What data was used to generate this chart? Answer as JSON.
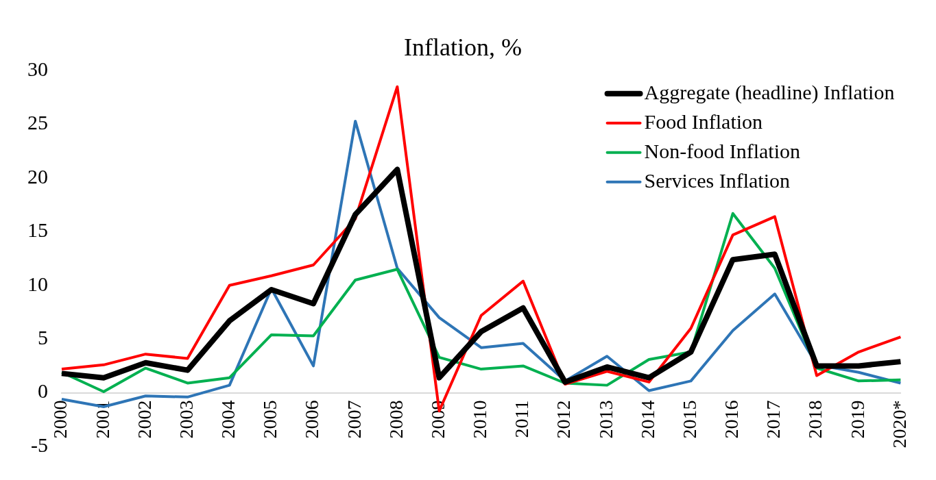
{
  "chart_data": {
    "type": "line",
    "title": "Inflation, %",
    "categories": [
      "2000",
      "2001",
      "2002",
      "2003",
      "2004",
      "2005",
      "2006",
      "2007",
      "2008",
      "2009",
      "2010",
      "2011",
      "2012",
      "2013",
      "2014",
      "2015",
      "2016",
      "2017",
      "2018",
      "2019",
      "2020*"
    ],
    "series": [
      {
        "name": "Aggregate (headline) Inflation",
        "color": "#000000",
        "values": [
          1.8,
          1.4,
          2.8,
          2.1,
          6.7,
          9.6,
          8.3,
          16.6,
          20.8,
          1.4,
          5.7,
          7.9,
          1.0,
          2.4,
          1.4,
          3.8,
          12.4,
          12.9,
          2.5,
          2.5,
          2.9
        ]
      },
      {
        "name": "Food Inflation",
        "color": "#ff0000",
        "values": [
          2.2,
          2.6,
          3.6,
          3.2,
          10.0,
          10.9,
          11.9,
          16.2,
          28.5,
          -1.7,
          7.2,
          10.4,
          0.8,
          2.0,
          1.0,
          6.0,
          14.7,
          16.4,
          1.6,
          3.8,
          5.2
        ]
      },
      {
        "name": "Non-food Inflation",
        "color": "#00b050",
        "values": [
          1.9,
          0.1,
          2.3,
          0.9,
          1.4,
          5.4,
          5.3,
          10.5,
          11.5,
          3.3,
          2.2,
          2.5,
          0.9,
          0.7,
          3.1,
          3.8,
          16.7,
          11.6,
          2.3,
          1.1,
          1.2
        ]
      },
      {
        "name": "Services Inflation",
        "color": "#2e75b6",
        "values": [
          -0.6,
          -1.3,
          -0.3,
          -0.4,
          0.7,
          9.7,
          2.5,
          25.3,
          11.6,
          7.0,
          4.2,
          4.6,
          1.1,
          3.4,
          0.2,
          1.1,
          5.8,
          9.2,
          2.6,
          1.9,
          0.9
        ]
      }
    ],
    "ylim": [
      -5,
      30
    ],
    "yticks": [
      -5,
      0,
      5,
      10,
      15,
      20,
      25,
      30
    ],
    "grid": false,
    "legend": "top right",
    "marker": "none",
    "line_style": "solid"
  }
}
